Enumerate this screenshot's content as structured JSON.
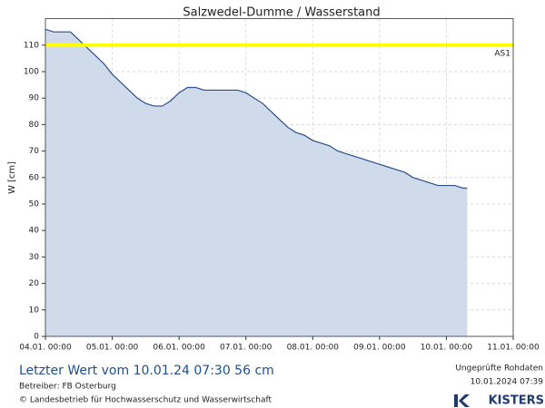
{
  "chart_data": {
    "type": "line",
    "title": "Salzwedel-Dumme / Wasserstand",
    "y_label": "W [cm]",
    "x": [
      "04.01. 00:00",
      "04.01. 03:00",
      "04.01. 06:00",
      "04.01. 09:00",
      "04.01. 12:00",
      "04.01. 15:00",
      "04.01. 18:00",
      "04.01. 21:00",
      "05.01. 00:00",
      "05.01. 03:00",
      "05.01. 06:00",
      "05.01. 09:00",
      "05.01. 12:00",
      "05.01. 15:00",
      "05.01. 18:00",
      "05.01. 21:00",
      "06.01. 00:00",
      "06.01. 03:00",
      "06.01. 06:00",
      "06.01. 09:00",
      "06.01. 12:00",
      "06.01. 15:00",
      "06.01. 18:00",
      "06.01. 21:00",
      "07.01. 00:00",
      "07.01. 03:00",
      "07.01. 06:00",
      "07.01. 09:00",
      "07.01. 12:00",
      "07.01. 15:00",
      "07.01. 18:00",
      "07.01. 21:00",
      "08.01. 00:00",
      "08.01. 03:00",
      "08.01. 06:00",
      "08.01. 09:00",
      "08.01. 12:00",
      "08.01. 15:00",
      "08.01. 18:00",
      "08.01. 21:00",
      "09.01. 00:00",
      "09.01. 03:00",
      "09.01. 06:00",
      "09.01. 09:00",
      "09.01. 12:00",
      "09.01. 15:00",
      "09.01. 18:00",
      "09.01. 21:00",
      "10.01. 00:00",
      "10.01. 03:00",
      "10.01. 06:00",
      "10.01. 07:30"
    ],
    "series": [
      {
        "name": "W",
        "color": "#2b4f8a",
        "fill": "#cfdbea",
        "values": [
          116,
          115,
          115,
          115,
          112,
          109,
          106,
          103,
          99,
          96,
          93,
          90,
          88,
          87,
          87,
          89,
          92,
          94,
          94,
          93,
          93,
          93,
          93,
          93,
          92,
          90,
          88,
          85,
          82,
          79,
          77,
          76,
          74,
          73,
          72,
          70,
          69,
          68,
          67,
          66,
          65,
          64,
          63,
          62,
          60,
          59,
          58,
          57,
          57,
          57,
          56,
          56
        ]
      }
    ],
    "thresholds": [
      {
        "name": "AS1",
        "value": 110,
        "color": "#ffff00"
      }
    ],
    "xlim": [
      "04.01. 00:00",
      "11.01. 00:00"
    ],
    "xticks": [
      "04.01. 00:00",
      "05.01. 00:00",
      "06.01. 00:00",
      "07.01. 00:00",
      "08.01. 00:00",
      "09.01. 00:00",
      "10.01. 00:00",
      "11.01. 00:00"
    ],
    "ylim": [
      0,
      120
    ],
    "yticks": [
      0,
      10,
      20,
      30,
      40,
      50,
      60,
      70,
      80,
      90,
      100,
      110
    ],
    "grid": true
  },
  "footer": {
    "last_value": "Letzter Wert vom 10.01.24 07:30  56 cm",
    "operator": "Betreiber: FB Osterburg",
    "copyright": "© Landesbetrieb für Hochwasserschutz und Wasserwirtschaft",
    "status": "Ungeprüfte Rohdaten",
    "timestamp": "10.01.2024 07:39",
    "brand": "KISTERS"
  }
}
